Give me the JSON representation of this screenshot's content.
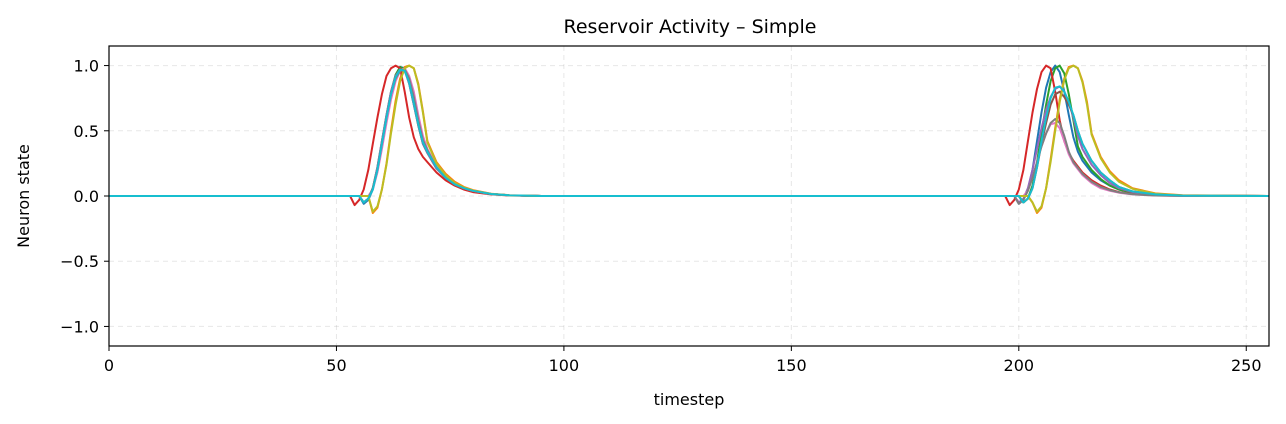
{
  "chart_data": {
    "type": "line",
    "title": "Reservoir Activity – Simple",
    "xlabel": "timestep",
    "ylabel": "Neuron state",
    "xlim": [
      0,
      255
    ],
    "ylim": [
      -1.15,
      1.15
    ],
    "xticks": [
      0,
      50,
      100,
      150,
      200,
      250
    ],
    "xtick_labels": [
      "0",
      "50",
      "100",
      "150",
      "200",
      "250"
    ],
    "yticks": [
      -1.0,
      -0.5,
      0.0,
      0.5,
      1.0
    ],
    "ytick_labels": [
      "−1.0",
      "−0.5",
      "0.0",
      "0.5",
      "1.0"
    ],
    "grid": true,
    "legend": "none",
    "series": [
      {
        "color": "#1f77b4",
        "x": [
          0,
          55,
          56,
          57,
          58,
          59,
          60,
          61,
          62,
          63,
          64,
          65,
          66,
          67,
          68,
          69,
          70,
          72,
          74,
          76,
          78,
          80,
          84,
          88,
          95,
          199,
          200,
          201,
          202,
          203,
          204,
          205,
          206,
          207,
          208,
          209,
          210,
          211,
          212,
          213,
          214,
          216,
          218,
          220,
          222,
          225,
          230,
          236,
          255
        ],
        "y": [
          0,
          0,
          -0.06,
          -0.03,
          0.05,
          0.2,
          0.4,
          0.6,
          0.78,
          0.92,
          0.99,
          0.98,
          0.88,
          0.72,
          0.56,
          0.42,
          0.34,
          0.22,
          0.14,
          0.09,
          0.06,
          0.04,
          0.015,
          0.005,
          0,
          0,
          -0.06,
          -0.03,
          0.05,
          0.2,
          0.42,
          0.64,
          0.83,
          0.95,
          1.0,
          0.95,
          0.8,
          0.62,
          0.45,
          0.34,
          0.27,
          0.18,
          0.12,
          0.08,
          0.05,
          0.025,
          0.01,
          0.002,
          0
        ]
      },
      {
        "color": "#ff7f0e",
        "x": [
          0,
          57,
          58,
          59,
          60,
          61,
          62,
          63,
          64,
          65,
          66,
          67,
          68,
          69,
          70,
          72,
          74,
          76,
          78,
          80,
          84,
          88,
          95,
          202,
          203,
          204,
          205,
          206,
          207,
          208,
          209,
          210,
          211,
          212,
          213,
          214,
          215,
          216,
          218,
          220,
          222,
          225,
          230,
          236,
          255
        ],
        "y": [
          0,
          0,
          -0.13,
          -0.09,
          0.05,
          0.25,
          0.5,
          0.73,
          0.9,
          0.99,
          1.0,
          0.98,
          0.86,
          0.65,
          0.42,
          0.26,
          0.17,
          0.11,
          0.07,
          0.045,
          0.018,
          0.006,
          0,
          0,
          -0.05,
          -0.13,
          -0.09,
          0.06,
          0.28,
          0.52,
          0.74,
          0.9,
          0.99,
          1.0,
          0.98,
          0.88,
          0.72,
          0.48,
          0.3,
          0.19,
          0.12,
          0.06,
          0.02,
          0.005,
          0
        ]
      },
      {
        "color": "#2ca02c",
        "x": [
          0,
          55,
          56,
          57,
          58,
          59,
          60,
          61,
          62,
          63,
          64,
          65,
          66,
          67,
          68,
          69,
          70,
          72,
          74,
          76,
          78,
          80,
          84,
          88,
          95,
          200,
          201,
          202,
          203,
          204,
          205,
          206,
          207,
          208,
          209,
          210,
          211,
          212,
          213,
          214,
          216,
          218,
          220,
          222,
          225,
          230,
          236,
          255
        ],
        "y": [
          0,
          0,
          -0.05,
          -0.02,
          0.06,
          0.22,
          0.42,
          0.62,
          0.8,
          0.93,
          0.99,
          0.97,
          0.86,
          0.7,
          0.54,
          0.4,
          0.33,
          0.21,
          0.14,
          0.09,
          0.06,
          0.04,
          0.015,
          0.005,
          0,
          0,
          -0.05,
          -0.02,
          0.08,
          0.26,
          0.48,
          0.7,
          0.88,
          0.98,
          1.0,
          0.94,
          0.78,
          0.58,
          0.38,
          0.3,
          0.2,
          0.13,
          0.08,
          0.05,
          0.025,
          0.01,
          0.002,
          0
        ]
      },
      {
        "color": "#d62728",
        "x": [
          0,
          53,
          54,
          55,
          56,
          57,
          58,
          59,
          60,
          61,
          62,
          63,
          64,
          65,
          66,
          67,
          68,
          69,
          70,
          72,
          74,
          76,
          78,
          80,
          84,
          88,
          95,
          197,
          198,
          199,
          200,
          201,
          202,
          203,
          204,
          205,
          206,
          207,
          208,
          209,
          210,
          211,
          212,
          214,
          216,
          218,
          220,
          222,
          225,
          230,
          236,
          255
        ],
        "y": [
          0,
          0,
          -0.07,
          -0.03,
          0.05,
          0.2,
          0.4,
          0.6,
          0.78,
          0.92,
          0.98,
          1.0,
          0.98,
          0.8,
          0.6,
          0.45,
          0.36,
          0.3,
          0.26,
          0.18,
          0.12,
          0.08,
          0.05,
          0.03,
          0.012,
          0.004,
          0,
          0,
          -0.07,
          -0.03,
          0.05,
          0.2,
          0.42,
          0.64,
          0.82,
          0.95,
          1.0,
          0.98,
          0.8,
          0.58,
          0.42,
          0.33,
          0.27,
          0.18,
          0.12,
          0.08,
          0.05,
          0.03,
          0.015,
          0.005,
          0.001,
          0
        ]
      },
      {
        "color": "#9467bd",
        "x": [
          0,
          55,
          56,
          57,
          58,
          59,
          60,
          61,
          62,
          63,
          64,
          65,
          66,
          67,
          68,
          69,
          70,
          72,
          74,
          76,
          78,
          80,
          84,
          88,
          95,
          199,
          200,
          201,
          202,
          203,
          204,
          205,
          206,
          207,
          208,
          209,
          210,
          211,
          212,
          213,
          214,
          216,
          218,
          220,
          222,
          225,
          230,
          236,
          255
        ],
        "y": [
          0,
          0,
          -0.05,
          -0.02,
          0.06,
          0.22,
          0.42,
          0.62,
          0.8,
          0.92,
          0.97,
          0.96,
          0.86,
          0.7,
          0.54,
          0.4,
          0.33,
          0.21,
          0.14,
          0.09,
          0.06,
          0.04,
          0.015,
          0.005,
          0,
          0,
          -0.05,
          -0.02,
          0.06,
          0.2,
          0.36,
          0.52,
          0.66,
          0.76,
          0.82,
          0.84,
          0.8,
          0.72,
          0.6,
          0.46,
          0.36,
          0.24,
          0.16,
          0.1,
          0.06,
          0.03,
          0.012,
          0.003,
          0
        ]
      },
      {
        "color": "#8c564b",
        "x": [
          0,
          55,
          56,
          57,
          58,
          59,
          60,
          61,
          62,
          63,
          64,
          65,
          66,
          67,
          68,
          69,
          70,
          72,
          74,
          76,
          78,
          80,
          84,
          88,
          95,
          200,
          201,
          202,
          203,
          204,
          205,
          206,
          207,
          208,
          209,
          210,
          211,
          212,
          213,
          214,
          216,
          218,
          220,
          222,
          225,
          230,
          236,
          255
        ],
        "y": [
          0,
          0,
          -0.05,
          -0.02,
          0.06,
          0.2,
          0.4,
          0.6,
          0.78,
          0.9,
          0.96,
          0.96,
          0.88,
          0.72,
          0.55,
          0.41,
          0.34,
          0.22,
          0.14,
          0.09,
          0.06,
          0.04,
          0.015,
          0.005,
          0,
          0,
          -0.05,
          -0.02,
          0.06,
          0.22,
          0.4,
          0.56,
          0.7,
          0.78,
          0.8,
          0.76,
          0.7,
          0.62,
          0.5,
          0.4,
          0.27,
          0.18,
          0.12,
          0.07,
          0.035,
          0.012,
          0.003,
          0
        ]
      },
      {
        "color": "#e377c2",
        "x": [
          0,
          56,
          57,
          58,
          59,
          60,
          61,
          62,
          63,
          64,
          65,
          66,
          67,
          68,
          69,
          70,
          72,
          74,
          76,
          78,
          80,
          84,
          88,
          95,
          200,
          201,
          202,
          203,
          204,
          205,
          206,
          207,
          208,
          209,
          210,
          211,
          212,
          214,
          216,
          218,
          220,
          222,
          225,
          230,
          236,
          255
        ],
        "y": [
          0,
          0,
          0.0,
          0.05,
          0.18,
          0.36,
          0.56,
          0.74,
          0.88,
          0.96,
          0.98,
          0.92,
          0.8,
          0.62,
          0.46,
          0.36,
          0.23,
          0.15,
          0.1,
          0.06,
          0.04,
          0.015,
          0.005,
          0,
          0,
          0.0,
          0.04,
          0.14,
          0.26,
          0.38,
          0.48,
          0.55,
          0.56,
          0.52,
          0.42,
          0.32,
          0.25,
          0.16,
          0.1,
          0.06,
          0.04,
          0.025,
          0.012,
          0.004,
          0.001,
          0
        ]
      },
      {
        "color": "#7f7f7f",
        "x": [
          0,
          55,
          56,
          57,
          58,
          59,
          60,
          61,
          62,
          63,
          64,
          65,
          66,
          67,
          68,
          69,
          70,
          72,
          74,
          76,
          78,
          80,
          84,
          88,
          95,
          199,
          200,
          201,
          202,
          203,
          204,
          205,
          206,
          207,
          208,
          209,
          210,
          211,
          212,
          214,
          216,
          218,
          220,
          222,
          225,
          230,
          236,
          255
        ],
        "y": [
          0,
          0,
          -0.05,
          -0.02,
          0.06,
          0.2,
          0.4,
          0.6,
          0.78,
          0.9,
          0.96,
          0.97,
          0.9,
          0.76,
          0.58,
          0.43,
          0.35,
          0.22,
          0.14,
          0.09,
          0.06,
          0.04,
          0.015,
          0.005,
          0,
          0,
          -0.06,
          -0.03,
          0.04,
          0.14,
          0.26,
          0.38,
          0.48,
          0.56,
          0.59,
          0.56,
          0.46,
          0.34,
          0.26,
          0.17,
          0.11,
          0.07,
          0.045,
          0.028,
          0.013,
          0.004,
          0.001,
          0
        ]
      },
      {
        "color": "#bcbd22",
        "x": [
          0,
          57,
          58,
          59,
          60,
          61,
          62,
          63,
          64,
          65,
          66,
          67,
          68,
          69,
          70,
          72,
          74,
          76,
          78,
          80,
          84,
          88,
          95,
          202,
          203,
          204,
          205,
          206,
          207,
          208,
          209,
          210,
          211,
          212,
          213,
          214,
          215,
          216,
          218,
          220,
          222,
          225,
          230,
          236,
          255
        ],
        "y": [
          0,
          0,
          -0.12,
          -0.08,
          0.05,
          0.24,
          0.48,
          0.7,
          0.88,
          0.98,
          1.0,
          0.98,
          0.85,
          0.64,
          0.41,
          0.25,
          0.16,
          0.1,
          0.065,
          0.042,
          0.016,
          0.005,
          0,
          0,
          -0.05,
          -0.12,
          -0.08,
          0.06,
          0.26,
          0.5,
          0.72,
          0.89,
          0.98,
          1.0,
          0.98,
          0.87,
          0.7,
          0.47,
          0.29,
          0.18,
          0.11,
          0.055,
          0.018,
          0.004,
          0
        ]
      },
      {
        "color": "#17becf",
        "x": [
          0,
          55,
          56,
          57,
          58,
          59,
          60,
          61,
          62,
          63,
          64,
          65,
          66,
          67,
          68,
          69,
          70,
          72,
          74,
          76,
          78,
          80,
          84,
          88,
          95,
          200,
          201,
          202,
          203,
          204,
          205,
          206,
          207,
          208,
          209,
          210,
          211,
          212,
          213,
          214,
          216,
          218,
          220,
          222,
          225,
          230,
          236,
          255
        ],
        "y": [
          0,
          0,
          -0.05,
          -0.02,
          0.05,
          0.2,
          0.4,
          0.6,
          0.78,
          0.91,
          0.97,
          0.96,
          0.87,
          0.71,
          0.55,
          0.41,
          0.34,
          0.22,
          0.14,
          0.09,
          0.06,
          0.04,
          0.015,
          0.005,
          0,
          0,
          -0.05,
          -0.02,
          0.06,
          0.22,
          0.42,
          0.6,
          0.75,
          0.83,
          0.84,
          0.8,
          0.72,
          0.62,
          0.5,
          0.4,
          0.27,
          0.18,
          0.12,
          0.07,
          0.035,
          0.012,
          0.003,
          0
        ]
      }
    ]
  }
}
